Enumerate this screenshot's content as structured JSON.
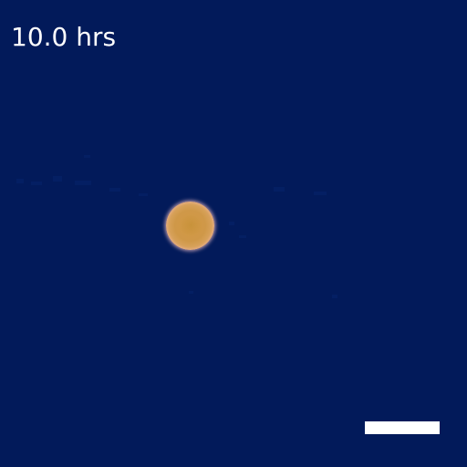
{
  "image": {
    "background_color": "#021a5a",
    "time_label": "10.0 hrs",
    "cell_colors": {
      "core": "#cf9848",
      "rim": "#f7c4c9"
    },
    "scale_bar_color": "#ffffff"
  }
}
